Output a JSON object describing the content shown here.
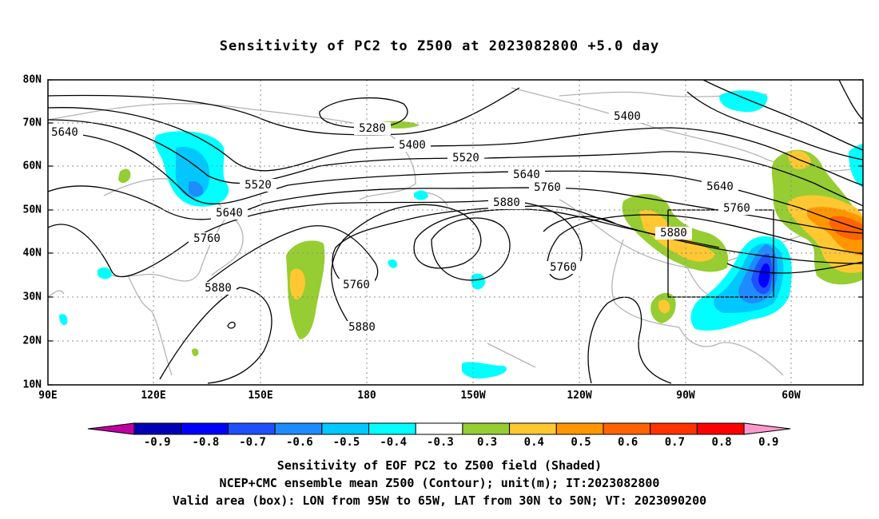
{
  "title": "Sensitivity of PC2 to Z500 at 2023082800 +5.0 day",
  "lat_labels": [
    "80N",
    "70N",
    "60N",
    "50N",
    "40N",
    "30N",
    "20N",
    "10N"
  ],
  "lon_labels": [
    "90E",
    "120E",
    "150E",
    "180",
    "150W",
    "120W",
    "90W",
    "60W"
  ],
  "contour_labels": [
    "5280",
    "5400",
    "5400",
    "5520",
    "5520",
    "5640",
    "5640",
    "5640",
    "5640",
    "5760",
    "5760",
    "5760",
    "5760",
    "5760",
    "5880",
    "5880",
    "5880",
    "5880"
  ],
  "colorbar": {
    "ticks": [
      "-0.9",
      "-0.8",
      "-0.7",
      "-0.6",
      "-0.5",
      "-0.4",
      "-0.3",
      "0.3",
      "0.4",
      "0.5",
      "0.6",
      "0.7",
      "0.8",
      "0.9"
    ],
    "colors": [
      "#c000a0",
      "#0000b4",
      "#0000ff",
      "#1e50ff",
      "#1e8cff",
      "#00c8ff",
      "#00ffff",
      "#ffffff",
      "#96cd32",
      "#ffc832",
      "#ff9600",
      "#ff6400",
      "#ff3200",
      "#ff0000",
      "#ff99cc"
    ]
  },
  "valid_box": {
    "lon": [
      -95,
      -65
    ],
    "lat": [
      30,
      50
    ]
  },
  "footer": {
    "line1": "Sensitivity of EOF PC2 to Z500 field (Shaded)",
    "line2": "NCEP+CMC ensemble mean Z500 (Contour); unit(m); IT:2023082800",
    "line3": "Valid area (box): LON from 95W to 65W, LAT from 30N to 50N; VT: 2023090200"
  }
}
